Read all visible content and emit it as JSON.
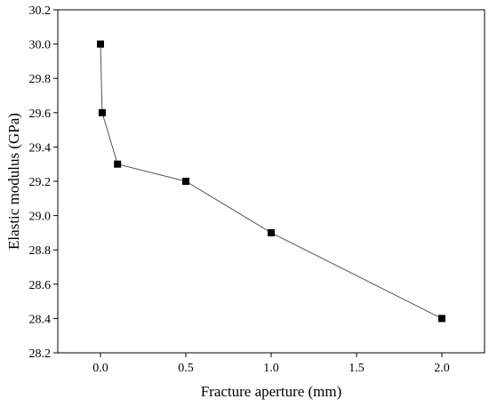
{
  "chart_data": {
    "type": "scatter",
    "title": "",
    "xlabel": "Fracture aperture (mm)",
    "ylabel": "Elastic modulus (GPa)",
    "xlim": [
      -0.25,
      2.25
    ],
    "ylim": [
      28.2,
      30.2
    ],
    "xticks": [
      0.0,
      0.5,
      1.0,
      1.5,
      2.0
    ],
    "xtick_labels": [
      "0.0",
      "0.5",
      "1.0",
      "1.5",
      "2.0"
    ],
    "yticks": [
      28.2,
      28.4,
      28.6,
      28.8,
      29.0,
      29.2,
      29.4,
      29.6,
      29.8,
      30.0,
      30.2
    ],
    "ytick_labels": [
      "28.2",
      "28.4",
      "28.6",
      "28.8",
      "29.0",
      "29.2",
      "29.4",
      "29.6",
      "29.8",
      "30.0",
      "30.2"
    ],
    "grid": false,
    "series": [
      {
        "marker": "square",
        "line": true,
        "color": "#000000",
        "line_color": "#555555",
        "x": [
          0.0,
          0.01,
          0.1,
          0.5,
          1.0,
          2.0
        ],
        "y": [
          30.0,
          29.6,
          29.3,
          29.2,
          28.9,
          28.4
        ]
      }
    ]
  }
}
